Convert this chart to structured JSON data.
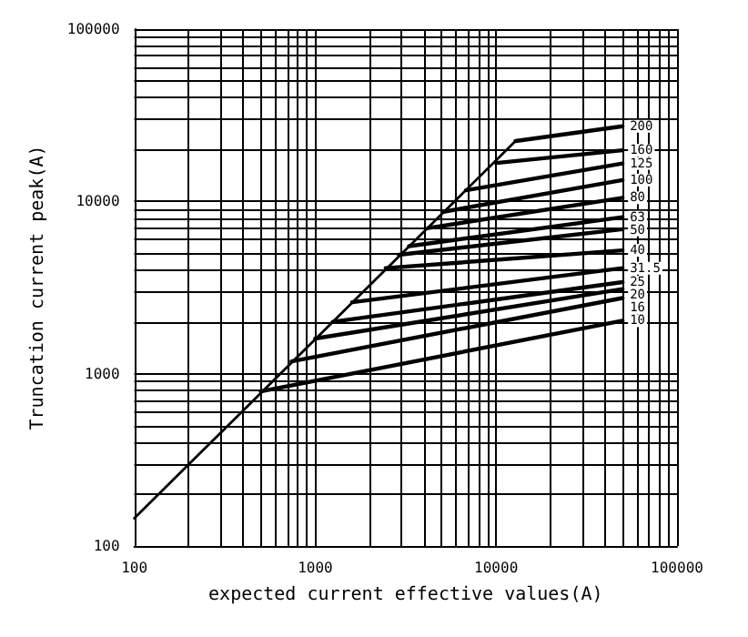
{
  "chart_data": {
    "type": "line",
    "xlabel": "expected current effective values(A)",
    "ylabel": "Truncation current peak(A)",
    "log": "xy",
    "grid": true,
    "marker": "none",
    "line_style": "solid",
    "xlim": [
      100,
      100000
    ],
    "ylim": [
      100,
      100000
    ],
    "xticks": [
      100,
      {
        "value": 200,
        "label": null
      },
      {
        "value": 300,
        "label": null
      },
      {
        "value": 400,
        "label": null
      },
      {
        "value": 500,
        "label": null
      },
      {
        "value": 600,
        "label": null
      },
      {
        "value": 700,
        "label": null
      },
      {
        "value": 800,
        "label": null
      },
      {
        "value": 900,
        "label": null
      },
      1000,
      {
        "value": 2000,
        "label": null
      },
      {
        "value": 3000,
        "label": null
      },
      {
        "value": 4000,
        "label": null
      },
      {
        "value": 5000,
        "label": null
      },
      {
        "value": 6000,
        "label": null
      },
      {
        "value": 7000,
        "label": null
      },
      {
        "value": 8000,
        "label": null
      },
      {
        "value": 9000,
        "label": null
      },
      10000,
      {
        "value": 20000,
        "label": null
      },
      {
        "value": 30000,
        "label": null
      },
      {
        "value": 40000,
        "label": null
      },
      {
        "value": 50000,
        "label": null
      },
      {
        "value": 60000,
        "label": null
      },
      {
        "value": 70000,
        "label": null
      },
      {
        "value": 80000,
        "label": null
      },
      {
        "value": 90000,
        "label": null
      },
      100000
    ],
    "yticks": [
      100,
      {
        "value": 200,
        "label": null
      },
      {
        "value": 300,
        "label": null
      },
      {
        "value": 400,
        "label": null
      },
      {
        "value": 500,
        "label": null
      },
      {
        "value": 600,
        "label": null
      },
      {
        "value": 700,
        "label": null
      },
      {
        "value": 800,
        "label": null
      },
      {
        "value": 900,
        "label": null
      },
      1000,
      {
        "value": 2000,
        "label": null
      },
      {
        "value": 3000,
        "label": null
      },
      {
        "value": 4000,
        "label": null
      },
      {
        "value": 5000,
        "label": null
      },
      {
        "value": 6000,
        "label": null
      },
      {
        "value": 7000,
        "label": null
      },
      {
        "value": 8000,
        "label": null
      },
      {
        "value": 9000,
        "label": null
      },
      10000,
      {
        "value": 20000,
        "label": null
      },
      {
        "value": 30000,
        "label": null
      },
      {
        "value": 40000,
        "label": null
      },
      {
        "value": 50000,
        "label": null
      },
      {
        "value": 60000,
        "label": null
      },
      {
        "value": 70000,
        "label": null
      },
      {
        "value": 80000,
        "label": null
      },
      {
        "value": 90000,
        "label": null
      },
      100000
    ],
    "series": [
      {
        "color": "#000000",
        "x": [
          100,
          12800
        ],
        "values": [
          145,
          22400
        ]
      },
      {
        "name": "200",
        "color": "#000000",
        "x": [
          12800,
          50000
        ],
        "values": [
          22400,
          27300
        ]
      },
      {
        "name": "160",
        "color": "#000000",
        "x": [
          10000,
          50000
        ],
        "values": [
          16700,
          19800
        ]
      },
      {
        "name": "125",
        "color": "#000000",
        "x": [
          6800,
          50000
        ],
        "values": [
          11600,
          16600
        ]
      },
      {
        "name": "100",
        "color": "#000000",
        "x": [
          5100,
          50000
        ],
        "values": [
          8700,
          13300
        ]
      },
      {
        "name": "80",
        "color": "#000000",
        "x": [
          4200,
          50000
        ],
        "values": [
          7000,
          10500
        ]
      },
      {
        "name": "63",
        "color": "#000000",
        "x": [
          3300,
          50000
        ],
        "values": [
          5500,
          8100
        ]
      },
      {
        "name": "50",
        "color": "#000000",
        "x": [
          2900,
          50000
        ],
        "values": [
          4900,
          6900
        ]
      },
      {
        "name": "40",
        "color": "#000000",
        "x": [
          2450,
          50000
        ],
        "values": [
          4100,
          5200
        ]
      },
      {
        "name": "31.5",
        "color": "#000000",
        "x": [
          1600,
          50000
        ],
        "values": [
          2600,
          4100
        ]
      },
      {
        "name": "25",
        "color": "#000000",
        "x": [
          1250,
          50000
        ],
        "values": [
          2000,
          3400
        ]
      },
      {
        "name": "20",
        "color": "#000000",
        "x": [
          1000,
          50000
        ],
        "values": [
          1600,
          3100
        ]
      },
      {
        "name": "16",
        "color": "#000000",
        "x": [
          740,
          50000
        ],
        "values": [
          1180,
          2750
        ]
      },
      {
        "name": "10",
        "color": "#000000",
        "x": [
          500,
          50000
        ],
        "values": [
          790,
          2030
        ]
      }
    ]
  }
}
